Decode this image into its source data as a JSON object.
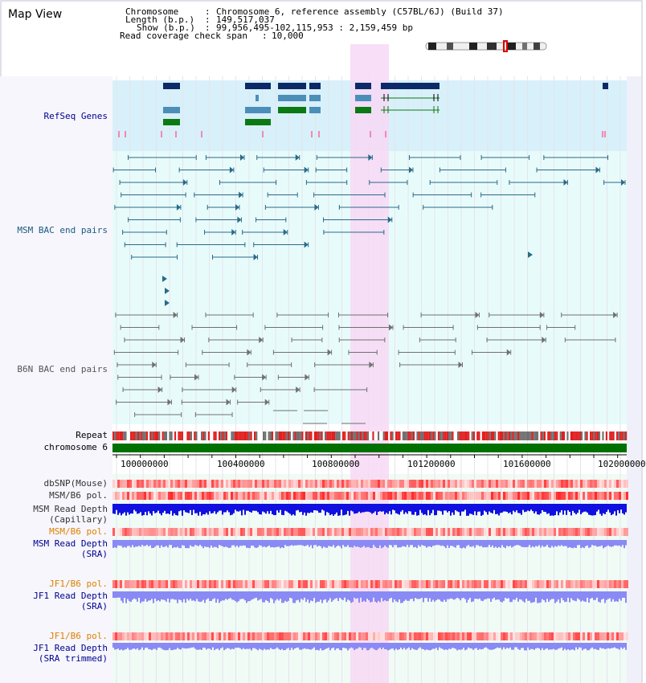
{
  "title": "Map View",
  "header": {
    "chromosome_label": "Chromosome",
    "chromosome_value": "Chromosome 6, reference assembly (C57BL/6J) (Build 37)",
    "length_label": "Length (b.p.)",
    "length_value": "149,517,037",
    "show_label": "Show (b.p.)",
    "show_value": "99,956,495-102,115,953 : 2,159,459 bp",
    "coverage_label": "Read coverage check span",
    "coverage_value": "10,000"
  },
  "tracks": {
    "refseq": "RefSeq Genes",
    "msm_bac": "MSM BAC end pairs",
    "b6n_bac": "B6N BAC end pairs",
    "repeat": "Repeat",
    "chromosome": "chromosome 6",
    "dbsnp": "dbSNP(Mouse)",
    "msm_b6_pol": "MSM/B6 pol.",
    "msm_depth_cap_1": "MSM Read Depth",
    "msm_depth_cap_2": "(Capillary)",
    "msm_b6_pol_sra": "MSM/B6 pol.",
    "msm_depth_sra_1": "MSM Read Depth",
    "msm_depth_sra_2": "(SRA)",
    "jf1_pol": "JF1/B6 pol.",
    "jf1_depth_1": "JF1 Read Depth",
    "jf1_depth_2": "(SRA)",
    "jf1_pol_trim": "JF1/B6 pol.",
    "jf1_trim_1": "JF1 Read Depth",
    "jf1_trim_2": "(SRA trimmed)"
  },
  "axis_ticks": [
    "100000000",
    "100400000",
    "100800000",
    "101200000",
    "101600000",
    "102000000"
  ],
  "colors": {
    "refseq_dark": "#0b2a66",
    "refseq_light": "#4b8fb8",
    "refseq_green": "#0c7a12",
    "msm_line": "#2a6a88",
    "b6n_line": "#707070",
    "highlight": "#f7dcf5",
    "chrom_green": "#007000",
    "depth_blue": "#1010e0",
    "depth_light": "#8a8af5",
    "label_blue": "#000090",
    "label_orange": "#e08000"
  }
}
